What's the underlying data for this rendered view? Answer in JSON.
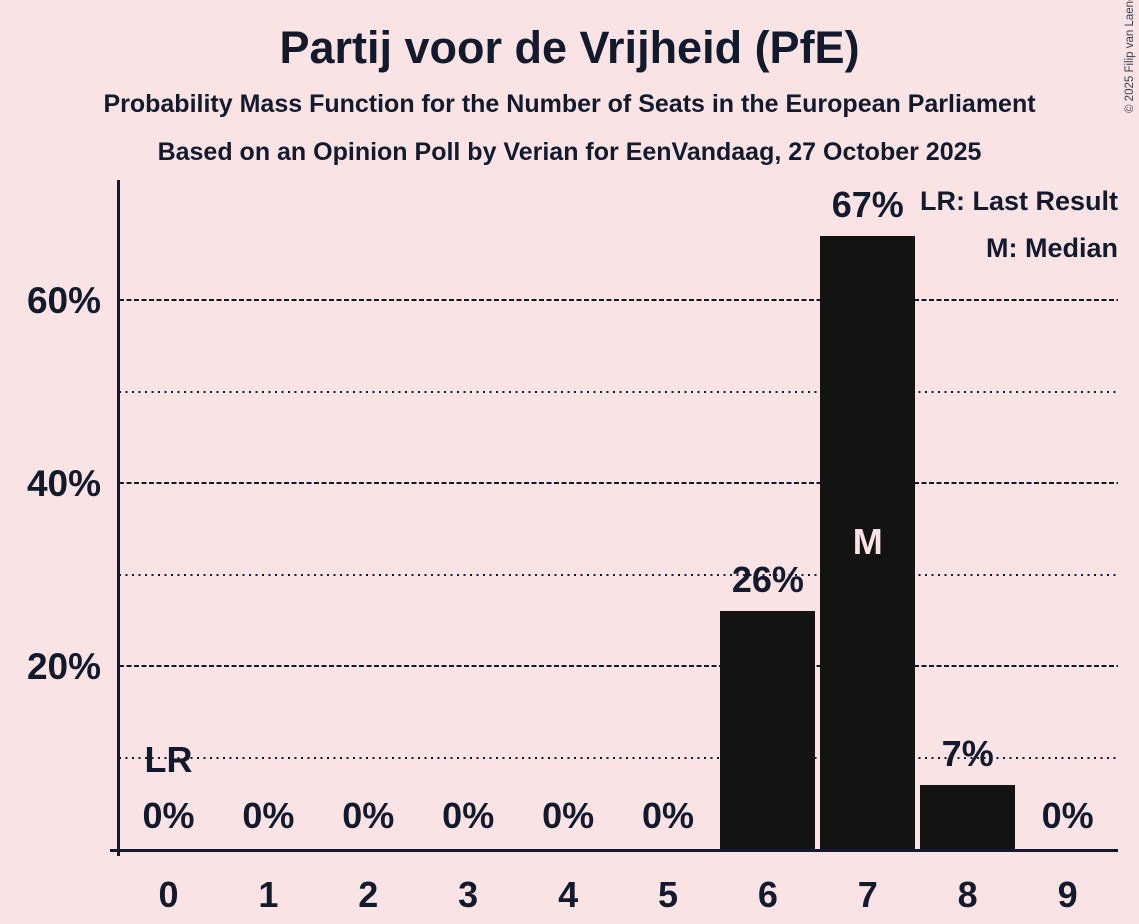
{
  "page": {
    "background_color": "#fae3e5",
    "ink_color": "#131a2c",
    "bar_color": "#131313"
  },
  "copyright": "© 2025 Filip van Laenen",
  "chart_data": {
    "type": "bar",
    "title": "Partij voor de Vrijheid (PfE)",
    "subtitle1": "Probability Mass Function for the Number of Seats in the European Parliament",
    "subtitle2": "Based on an Opinion Poll by Verian for EenVandaag, 27 October 2025",
    "xlabel": "",
    "ylabel": "",
    "categories": [
      "0",
      "1",
      "2",
      "3",
      "4",
      "5",
      "6",
      "7",
      "8",
      "9"
    ],
    "values": [
      0,
      0,
      0,
      0,
      0,
      0,
      26,
      67,
      7,
      0
    ],
    "bar_labels": [
      "0%",
      "0%",
      "0%",
      "0%",
      "0%",
      "0%",
      "26%",
      "67%",
      "7%",
      "0%"
    ],
    "ylim": [
      0,
      73
    ],
    "yticks_major": [
      {
        "value": 20,
        "label": "20%"
      },
      {
        "value": 40,
        "label": "40%"
      },
      {
        "value": 60,
        "label": "60%"
      }
    ],
    "yticks_minor": [
      10,
      30,
      50
    ],
    "grid": "horizontal only, dashed on major ticks, dotted on minor ticks",
    "legend_position": "top-right",
    "legend": [
      "LR: Last Result",
      "M: Median"
    ],
    "annotations": {
      "last_result_label": "LR",
      "last_result_seats": 0,
      "median_label": "M",
      "median_seats": 7
    }
  }
}
